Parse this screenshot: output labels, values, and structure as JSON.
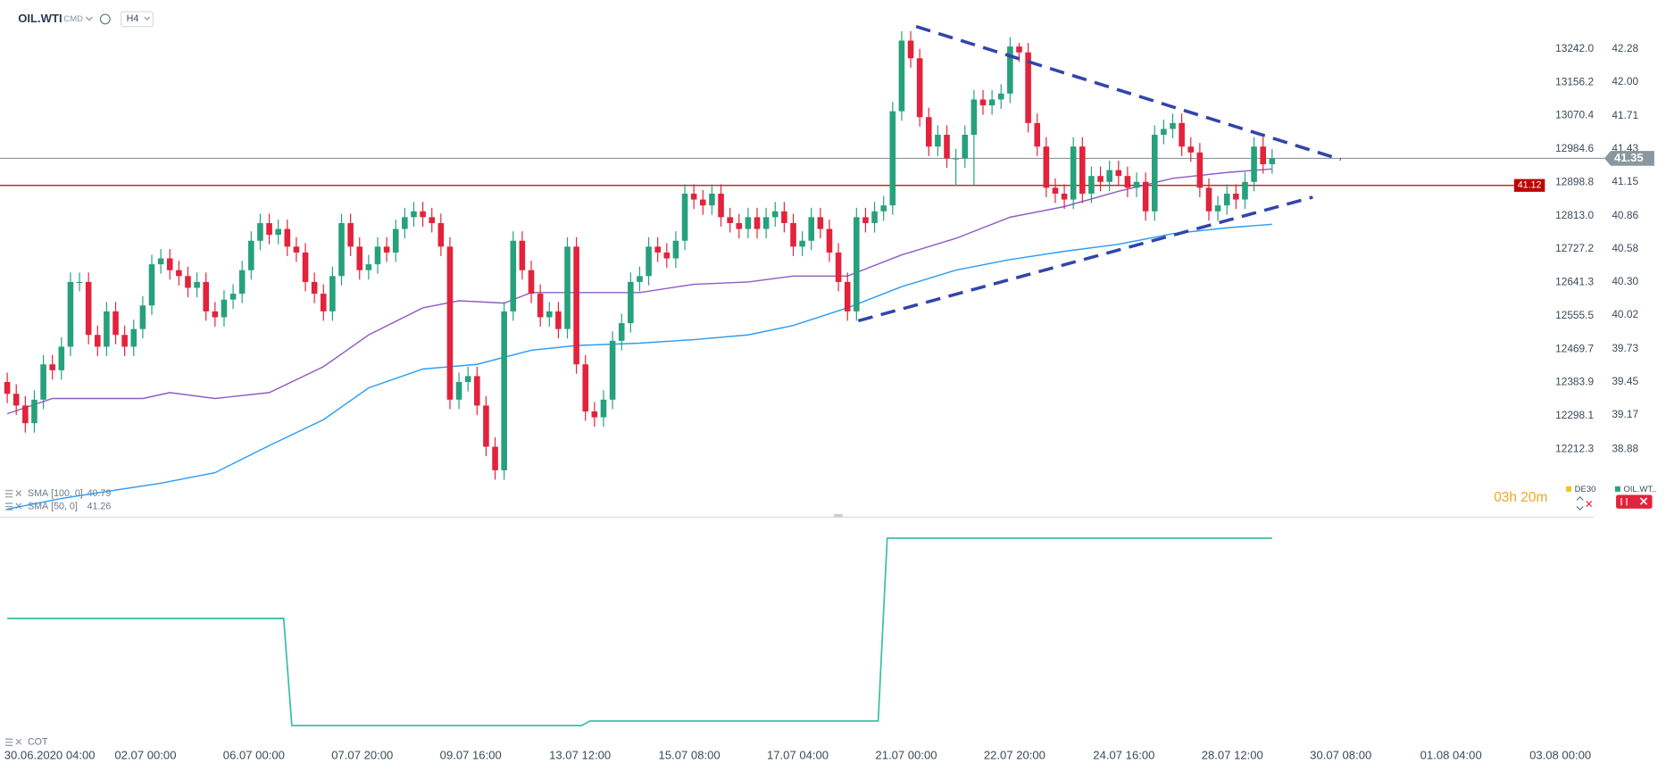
{
  "header": {
    "symbol": "OIL.WTI",
    "class": "CMD",
    "interval": "H4"
  },
  "countdown": "03h 20m",
  "legend_tabs": [
    {
      "name": "DE30",
      "color": "#f0c419"
    },
    {
      "name": "OIL.WT..",
      "color": "#26a17b"
    }
  ],
  "chart_data": [
    {
      "type": "candlestick",
      "name": "OIL.WTI",
      "up_color": "#26a17b",
      "down_color": "#e3223b",
      "xlim": [
        -0.8,
        175.6
      ],
      "xticks": [
        {
          "value": 4.7,
          "label": "30.06.2020 04:00"
        },
        {
          "value": 15.3,
          "label": "02.07 00:00"
        },
        {
          "value": 27.3,
          "label": "06.07 00:00"
        },
        {
          "value": 39.3,
          "label": "07.07 20:00"
        },
        {
          "value": 51.3,
          "label": "09.07 16:00"
        },
        {
          "value": 63.4,
          "label": "13.07 12:00"
        },
        {
          "value": 75.5,
          "label": "15.07 08:00"
        },
        {
          "value": 87.5,
          "label": "17.07 04:00"
        },
        {
          "value": 99.5,
          "label": "21.07 00:00"
        },
        {
          "value": 111.5,
          "label": "22.07 20:00"
        },
        {
          "value": 123.6,
          "label": "24.07 16:00"
        },
        {
          "value": 135.6,
          "label": "28.07 12:00"
        },
        {
          "value": 147.6,
          "label": "30.07 08:00"
        },
        {
          "value": 159.8,
          "label": "01.08 04:00"
        },
        {
          "value": 171.9,
          "label": "03.08 00:00"
        }
      ],
      "ylim": [
        38.32,
        42.65
      ],
      "yticks": [
        42.28,
        {
          "value": 42,
          "label": "42.00"
        },
        41.71,
        41.43,
        41.15,
        40.86,
        40.58,
        {
          "value": 40.3,
          "label": "40.30"
        },
        40.02,
        39.73,
        39.45,
        39.17,
        38.88
      ],
      "y2lim": [
        12043.1,
        13354.0
      ],
      "y2ticks": [
        {
          "value": 13242,
          "label": "13242.0"
        },
        13156.2,
        13070.4,
        12984.6,
        12898.8,
        {
          "value": 12813,
          "label": "12813.0"
        },
        12727.2,
        12641.3,
        12555.5,
        12469.7,
        12383.9,
        12298.1,
        12212.3
      ],
      "ohlc": [
        [
          39.45,
          39.53,
          39.27,
          39.35
        ],
        [
          39.35,
          39.43,
          39.17,
          39.25
        ],
        [
          39.25,
          39.33,
          39.02,
          39.1
        ],
        [
          39.1,
          39.38,
          39.02,
          39.3
        ],
        [
          39.3,
          39.68,
          39.22,
          39.6
        ],
        [
          39.6,
          39.68,
          39.47,
          39.55
        ],
        [
          39.55,
          39.83,
          39.47,
          39.75
        ],
        [
          39.75,
          40.38,
          39.67,
          40.3
        ],
        [
          40.3,
          40.38,
          40.22,
          40.3
        ],
        [
          40.3,
          40.38,
          39.77,
          39.85
        ],
        [
          39.85,
          39.93,
          39.67,
          39.75
        ],
        [
          39.75,
          40.13,
          39.67,
          40.05
        ],
        [
          40.05,
          40.13,
          39.77,
          39.85
        ],
        [
          39.85,
          39.93,
          39.67,
          39.75
        ],
        [
          39.75,
          39.98,
          39.67,
          39.9
        ],
        [
          39.9,
          40.18,
          39.82,
          40.1
        ],
        [
          40.1,
          40.53,
          40.02,
          40.45
        ],
        [
          40.45,
          40.58,
          40.37,
          40.5
        ],
        [
          40.5,
          40.58,
          40.32,
          40.4
        ],
        [
          40.4,
          40.48,
          40.27,
          40.35
        ],
        [
          40.35,
          40.43,
          40.17,
          40.25
        ],
        [
          40.25,
          40.38,
          40.17,
          40.3
        ],
        [
          40.3,
          40.38,
          39.97,
          40.05
        ],
        [
          40.05,
          40.13,
          39.92,
          40
        ],
        [
          40,
          40.23,
          39.92,
          40.15
        ],
        [
          40.15,
          40.28,
          40.07,
          40.2
        ],
        [
          40.2,
          40.48,
          40.12,
          40.4
        ],
        [
          40.4,
          40.73,
          40.32,
          40.65
        ],
        [
          40.65,
          40.88,
          40.57,
          40.8
        ],
        [
          40.8,
          40.88,
          40.62,
          40.7
        ],
        [
          40.7,
          40.83,
          40.62,
          40.75
        ],
        [
          40.75,
          40.83,
          40.52,
          40.6
        ],
        [
          40.6,
          40.68,
          40.47,
          40.55
        ],
        [
          40.55,
          40.63,
          40.22,
          40.3
        ],
        [
          40.3,
          40.38,
          40.12,
          40.2
        ],
        [
          40.2,
          40.28,
          39.97,
          40.05
        ],
        [
          40.05,
          40.43,
          39.97,
          40.35
        ],
        [
          40.35,
          40.88,
          40.27,
          40.8
        ],
        [
          40.8,
          40.88,
          40.52,
          40.6
        ],
        [
          40.6,
          40.68,
          40.32,
          40.4
        ],
        [
          40.4,
          40.53,
          40.32,
          40.45
        ],
        [
          40.45,
          40.68,
          40.37,
          40.6
        ],
        [
          40.6,
          40.68,
          40.47,
          40.55
        ],
        [
          40.55,
          40.83,
          40.47,
          40.75
        ],
        [
          40.75,
          40.93,
          40.67,
          40.85
        ],
        [
          40.85,
          40.98,
          40.77,
          40.9
        ],
        [
          40.9,
          40.98,
          40.77,
          40.85
        ],
        [
          40.85,
          40.93,
          40.72,
          40.8
        ],
        [
          40.8,
          40.88,
          40.52,
          40.6
        ],
        [
          40.6,
          40.68,
          39.22,
          39.3
        ],
        [
          39.3,
          39.53,
          39.22,
          39.45
        ],
        [
          39.45,
          39.58,
          39.37,
          39.5
        ],
        [
          39.5,
          39.58,
          39.17,
          39.25
        ],
        [
          39.25,
          39.33,
          38.82,
          38.9
        ],
        [
          38.9,
          38.98,
          38.62,
          38.7
        ],
        [
          38.7,
          40.13,
          38.62,
          40.05
        ],
        [
          40.05,
          40.73,
          39.97,
          40.65
        ],
        [
          40.65,
          40.73,
          40.32,
          40.4
        ],
        [
          40.4,
          40.48,
          40.12,
          40.2
        ],
        [
          40.2,
          40.28,
          39.92,
          40
        ],
        [
          40,
          40.13,
          39.92,
          40.05
        ],
        [
          40.05,
          40.13,
          39.82,
          39.9
        ],
        [
          39.9,
          40.68,
          39.82,
          40.6
        ],
        [
          40.6,
          40.68,
          39.52,
          39.6
        ],
        [
          39.6,
          39.68,
          39.12,
          39.2
        ],
        [
          39.2,
          39.28,
          39.07,
          39.15
        ],
        [
          39.15,
          39.38,
          39.07,
          39.3
        ],
        [
          39.3,
          39.88,
          39.22,
          39.8
        ],
        [
          39.8,
          40.03,
          39.72,
          39.95
        ],
        [
          39.95,
          40.38,
          39.87,
          40.3
        ],
        [
          40.3,
          40.43,
          40.22,
          40.35
        ],
        [
          40.35,
          40.68,
          40.27,
          40.6
        ],
        [
          40.6,
          40.68,
          40.47,
          40.55
        ],
        [
          40.55,
          40.63,
          40.42,
          40.5
        ],
        [
          40.5,
          40.73,
          40.42,
          40.65
        ],
        [
          40.65,
          41.13,
          40.57,
          41.05
        ],
        [
          41.05,
          41.13,
          40.92,
          41
        ],
        [
          41,
          41.08,
          40.87,
          40.95
        ],
        [
          40.95,
          41.13,
          40.87,
          41.05
        ],
        [
          41.05,
          41.13,
          40.77,
          40.85
        ],
        [
          40.85,
          40.93,
          40.72,
          40.8
        ],
        [
          40.8,
          40.88,
          40.67,
          40.75
        ],
        [
          40.75,
          40.93,
          40.67,
          40.85
        ],
        [
          40.85,
          40.93,
          40.67,
          40.75
        ],
        [
          40.75,
          40.93,
          40.67,
          40.85
        ],
        [
          40.85,
          40.98,
          40.77,
          40.9
        ],
        [
          40.9,
          40.98,
          40.72,
          40.8
        ],
        [
          40.8,
          40.88,
          40.52,
          40.6
        ],
        [
          40.6,
          40.73,
          40.52,
          40.65
        ],
        [
          40.65,
          40.93,
          40.57,
          40.85
        ],
        [
          40.85,
          40.93,
          40.67,
          40.75
        ],
        [
          40.75,
          40.83,
          40.47,
          40.55
        ],
        [
          40.55,
          40.63,
          40.22,
          40.3
        ],
        [
          40.3,
          40.38,
          39.97,
          40.05
        ],
        [
          40.05,
          40.93,
          39.97,
          40.85
        ],
        [
          40.85,
          40.93,
          40.72,
          40.8
        ],
        [
          40.8,
          40.98,
          40.72,
          40.9
        ],
        [
          40.9,
          41.03,
          40.82,
          40.95
        ],
        [
          40.95,
          41.83,
          40.87,
          41.75
        ],
        [
          41.75,
          42.43,
          41.67,
          42.35
        ],
        [
          42.35,
          42.43,
          42.12,
          42.2
        ],
        [
          42.2,
          42.28,
          41.62,
          41.7
        ],
        [
          41.7,
          41.78,
          41.37,
          41.45
        ],
        [
          41.45,
          41.63,
          41.37,
          41.55
        ],
        [
          41.55,
          41.63,
          41.27,
          41.35
        ],
        [
          41.35,
          41.43,
          41.12,
          41.35
        ],
        [
          41.35,
          41.63,
          41.27,
          41.55
        ],
        [
          41.55,
          41.93,
          41.12,
          41.85
        ],
        [
          41.85,
          41.93,
          41.72,
          41.8
        ],
        [
          41.8,
          41.93,
          41.72,
          41.85
        ],
        [
          41.85,
          41.98,
          41.77,
          41.9
        ],
        [
          41.9,
          42.38,
          41.82,
          42.3
        ],
        [
          42.3,
          42.33,
          42.17,
          42.25
        ],
        [
          42.25,
          42.33,
          41.57,
          41.65
        ],
        [
          41.65,
          41.73,
          41.37,
          41.45
        ],
        [
          41.45,
          41.53,
          41.02,
          41.1
        ],
        [
          41.1,
          41.18,
          40.97,
          41.05
        ],
        [
          41.05,
          41.13,
          40.92,
          41
        ],
        [
          41,
          41.53,
          40.92,
          41.45
        ],
        [
          41.45,
          41.53,
          40.97,
          41.05
        ],
        [
          41.05,
          41.28,
          40.97,
          41.2
        ],
        [
          41.2,
          41.28,
          41.07,
          41.15
        ],
        [
          41.15,
          41.33,
          41.07,
          41.25
        ],
        [
          41.25,
          41.33,
          41.12,
          41.2
        ],
        [
          41.2,
          41.28,
          41.02,
          41.1
        ],
        [
          41.1,
          41.23,
          41.02,
          41.15
        ],
        [
          41.15,
          41.23,
          40.82,
          40.9
        ],
        [
          40.9,
          41.63,
          40.82,
          41.55
        ],
        [
          41.55,
          41.68,
          41.47,
          41.6
        ],
        [
          41.6,
          41.73,
          41.52,
          41.65
        ],
        [
          41.65,
          41.73,
          41.37,
          41.45
        ],
        [
          41.45,
          41.53,
          41.32,
          41.4
        ],
        [
          41.4,
          41.48,
          41.02,
          41.1
        ],
        [
          41.1,
          41.18,
          40.82,
          40.9
        ],
        [
          40.9,
          41.03,
          40.82,
          40.95
        ],
        [
          40.95,
          41.13,
          40.87,
          41.05
        ],
        [
          41.05,
          41.13,
          40.92,
          41
        ],
        [
          41,
          41.23,
          40.92,
          41.15
        ],
        [
          41.15,
          41.53,
          41.07,
          41.45
        ],
        [
          41.45,
          41.53,
          41.22,
          41.3
        ],
        [
          41.3,
          41.43,
          41.22,
          41.35
        ]
      ],
      "studies": [
        {
          "name": "SMA",
          "params": "[100, 0]",
          "value": 40.79,
          "color": "#2a9df4",
          "x": [
            0,
            6,
            11,
            17,
            23,
            29,
            35,
            40,
            46,
            52,
            58,
            63,
            70,
            76,
            82,
            87,
            93,
            99,
            105,
            111,
            117,
            123,
            129,
            135,
            140
          ],
          "values": [
            38.37,
            38.46,
            38.52,
            38.59,
            38.68,
            38.91,
            39.13,
            39.4,
            39.56,
            39.6,
            39.72,
            39.76,
            39.78,
            39.81,
            39.85,
            39.93,
            40.08,
            40.26,
            40.4,
            40.49,
            40.56,
            40.62,
            40.71,
            40.76,
            40.79
          ]
        },
        {
          "name": "SMA",
          "params": "[50, 0]",
          "value": 41.26,
          "color": "#8e5cc7",
          "x": [
            0,
            5,
            11,
            15,
            18,
            23,
            29,
            35,
            40,
            46,
            50,
            55,
            58,
            63,
            70,
            76,
            82,
            87,
            93,
            99,
            105,
            111,
            117,
            123,
            129,
            135,
            140
          ],
          "values": [
            39.18,
            39.31,
            39.31,
            39.31,
            39.36,
            39.31,
            39.36,
            39.58,
            39.85,
            40.08,
            40.14,
            40.12,
            40.21,
            40.21,
            40.21,
            40.28,
            40.3,
            40.35,
            40.35,
            40.53,
            40.67,
            40.85,
            40.94,
            41.07,
            41.18,
            41.23,
            41.26
          ]
        }
      ],
      "trendlines": [
        {
          "x": [
            100.6,
            147.6
          ],
          "values": [
            42.47,
            41.34
          ]
        },
        {
          "x": [
            94.2,
            144.5
          ],
          "values": [
            39.97,
            41.02
          ]
        }
      ],
      "trendline_color": "#3344aa",
      "last_price": 41.35,
      "last_price_color": "#8a979e",
      "price_line": 41.12,
      "price_line_color": "#c00000"
    },
    {
      "type": "line",
      "name": "COT",
      "color": "#3fc1a5",
      "xlim": [
        -0.8,
        175.6
      ],
      "ylim": [
        0,
        100
      ],
      "x": [
        0,
        30.6,
        31.5,
        63.6,
        64.5,
        96.4,
        97.4,
        140
      ],
      "values": [
        56,
        56,
        8,
        8,
        10,
        10,
        92,
        92
      ]
    }
  ]
}
